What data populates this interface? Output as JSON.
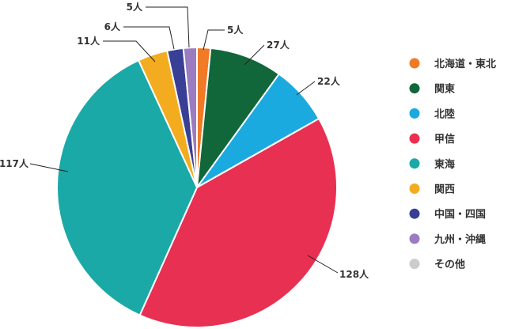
{
  "chart_data": {
    "type": "pie",
    "unit": "人",
    "start": "top",
    "direction": "clockwise",
    "legend_position": "right",
    "categories": [
      "北海道・東北",
      "関東",
      "北陸",
      "甲信",
      "東海",
      "関西",
      "中国・四国",
      "九州・沖縄",
      "その他"
    ],
    "values": [
      5,
      27,
      22,
      128,
      117,
      11,
      6,
      5,
      0
    ],
    "colors": [
      "#F07A25",
      "#12673A",
      "#1AAAE0",
      "#E83052",
      "#1AA9A6",
      "#F3AC20",
      "#3A3F96",
      "#9B7CC0",
      "#CCCCCC"
    ],
    "data_labels": [
      "5人",
      "27人",
      "22人",
      "128人",
      "117人",
      "11人",
      "6人",
      "5人",
      ""
    ]
  }
}
